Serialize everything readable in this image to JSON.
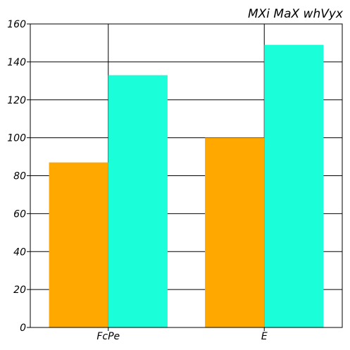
{
  "chart_data": {
    "type": "bar",
    "title": "MXi MaX whVyx",
    "categories": [
      "FcPe",
      "E"
    ],
    "series": [
      {
        "color": "#ffa800",
        "values": [
          87,
          100
        ]
      },
      {
        "color": "#1affd9",
        "values": [
          133,
          149
        ]
      }
    ],
    "ylim": [
      0,
      160
    ],
    "yticks": [
      0,
      20,
      40,
      60,
      80,
      100,
      120,
      140,
      160
    ],
    "grid": true,
    "xlabel": "",
    "ylabel": ""
  }
}
